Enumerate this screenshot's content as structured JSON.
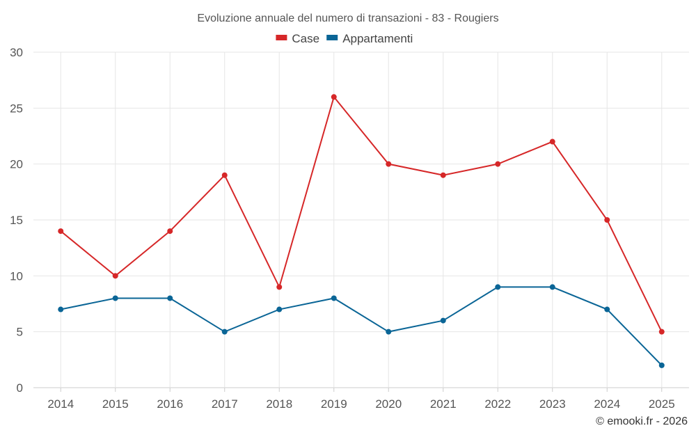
{
  "chart_data": {
    "type": "line",
    "title": "Evoluzione annuale del numero di transazioni - 83 - Rougiers",
    "categories": [
      "2014",
      "2015",
      "2016",
      "2017",
      "2018",
      "2019",
      "2020",
      "2021",
      "2022",
      "2023",
      "2024",
      "2025"
    ],
    "series": [
      {
        "name": "Case",
        "color": "#d62728",
        "values": [
          14,
          10,
          14,
          19,
          9,
          26,
          20,
          19,
          20,
          22,
          15,
          5
        ]
      },
      {
        "name": "Appartamenti",
        "color": "#0a6596",
        "values": [
          7,
          8,
          8,
          5,
          7,
          8,
          5,
          6,
          9,
          9,
          7,
          2
        ]
      }
    ],
    "ylim": [
      0,
      30
    ],
    "yticks": [
      0,
      5,
      10,
      15,
      20,
      25,
      30
    ],
    "xlabel": "",
    "ylabel": "",
    "grid": true,
    "legend": "top-center"
  },
  "credit": "© emooki.fr - 2026"
}
